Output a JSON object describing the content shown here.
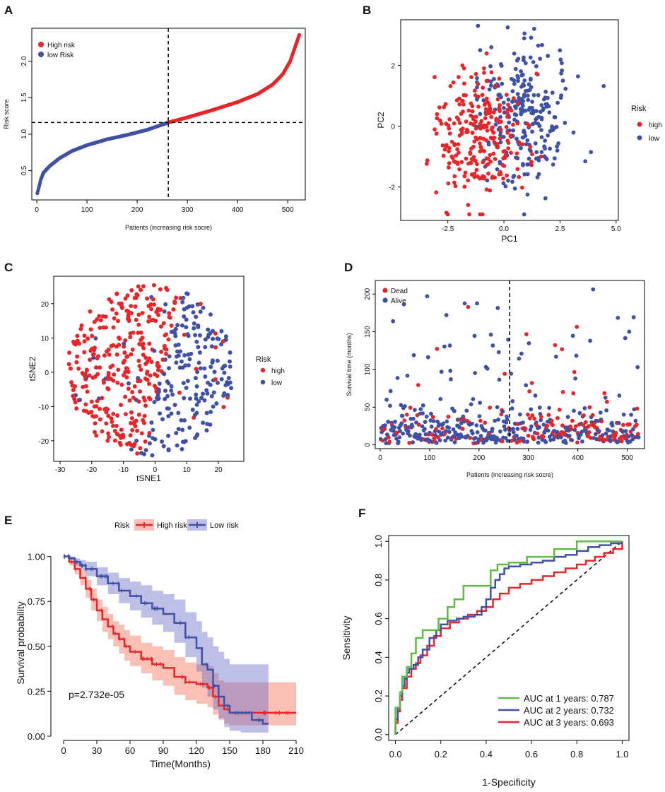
{
  "chart_data": [
    {
      "panel": "A",
      "type": "scatter",
      "title": "",
      "xlabel": "Patients (increasing risk socre)",
      "ylabel": "Risk score",
      "xlim": [
        -10,
        535
      ],
      "ylim": [
        0.1,
        2.45
      ],
      "xticks": [
        "0",
        "100",
        "200",
        "300",
        "400",
        "500"
      ],
      "yticks": [
        "0.5",
        "1.0",
        "1.5",
        "2.0"
      ],
      "cutoff_x": 262,
      "cutoff_y": 1.16,
      "legend": [
        "High risk",
        "low Risk"
      ],
      "colors": {
        "high": "#e8262a",
        "low": "#3f51a5"
      },
      "n_patients": 523,
      "curve_knots": [
        [
          1,
          0.19
        ],
        [
          4,
          0.27
        ],
        [
          8,
          0.38
        ],
        [
          13,
          0.47
        ],
        [
          25,
          0.56
        ],
        [
          45,
          0.67
        ],
        [
          70,
          0.77
        ],
        [
          100,
          0.85
        ],
        [
          140,
          0.93
        ],
        [
          180,
          0.99
        ],
        [
          220,
          1.06
        ],
        [
          262,
          1.16
        ],
        [
          300,
          1.23
        ],
        [
          350,
          1.33
        ],
        [
          400,
          1.44
        ],
        [
          440,
          1.55
        ],
        [
          470,
          1.68
        ],
        [
          490,
          1.82
        ],
        [
          505,
          2.0
        ],
        [
          515,
          2.2
        ],
        [
          523,
          2.36
        ]
      ]
    },
    {
      "panel": "B",
      "type": "scatter",
      "xlabel": "PC1",
      "ylabel": "PC2",
      "xlim": [
        -4.6,
        5.1
      ],
      "ylim": [
        -3.1,
        3.5
      ],
      "xticks": [
        "-2.5",
        "0.0",
        "2.5",
        "5.0"
      ],
      "yticks": [
        "-2",
        "0",
        "2"
      ],
      "legend_title": "Risk",
      "legend": [
        "high",
        "low"
      ],
      "groups": {
        "high": {
          "cx": -1.0,
          "cy": -0.3,
          "sx": 1.0,
          "sy": 1.05
        },
        "low": {
          "cx": 0.8,
          "cy": 0.3,
          "sx": 1.1,
          "sy": 1.1
        }
      },
      "n_per_group": 262
    },
    {
      "panel": "C",
      "type": "scatter",
      "xlabel": "tSNE1",
      "ylabel": "tSNE2",
      "xlim": [
        -32,
        28
      ],
      "ylim": [
        -26,
        28
      ],
      "xticks": [
        "-30",
        "-20",
        "-10",
        "0",
        "10",
        "20"
      ],
      "yticks": [
        "-20",
        "-10",
        "0",
        "10",
        "20"
      ],
      "legend_title": "Risk",
      "legend": [
        "high",
        "low"
      ],
      "disk": {
        "cx": -1.5,
        "cy": 0.5,
        "r": 25
      },
      "n_per_group": 262
    },
    {
      "panel": "D",
      "type": "scatter",
      "xlabel": "Patients (increasing risk socre)",
      "ylabel": "Survival time (months)",
      "xlim": [
        -10,
        535
      ],
      "ylim": [
        -5,
        218
      ],
      "xticks": [
        "0",
        "100",
        "200",
        "300",
        "400",
        "500"
      ],
      "yticks": [
        "0",
        "50",
        "100",
        "150",
        "200"
      ],
      "cutoff_x": 262,
      "legend": [
        "Dead",
        "Alive"
      ],
      "n_patients": 523
    },
    {
      "panel": "E",
      "type": "line",
      "xlabel": "Time(Months)",
      "ylabel": "Survival probability",
      "xlim": [
        0,
        210
      ],
      "ylim": [
        0,
        1.03
      ],
      "xticks": [
        "0",
        "30",
        "60",
        "90",
        "120",
        "150",
        "180",
        "210"
      ],
      "yticks": [
        "0.00",
        "0.25",
        "0.50",
        "0.75",
        "1.00"
      ],
      "legend_title": "Risk",
      "annotation": "p=2.732e-05",
      "series": [
        {
          "name": "High risk",
          "color": "#e8262a",
          "x": [
            0,
            5,
            10,
            15,
            20,
            25,
            30,
            35,
            40,
            45,
            50,
            55,
            60,
            70,
            80,
            90,
            100,
            110,
            120,
            130,
            135,
            140,
            145,
            150,
            160,
            170,
            180,
            210
          ],
          "y": [
            1.0,
            0.97,
            0.93,
            0.88,
            0.82,
            0.76,
            0.7,
            0.65,
            0.61,
            0.57,
            0.54,
            0.5,
            0.47,
            0.43,
            0.4,
            0.38,
            0.33,
            0.3,
            0.29,
            0.27,
            0.22,
            0.17,
            0.15,
            0.13,
            0.13,
            0.13,
            0.13,
            0.13
          ],
          "ci_low": [
            1.0,
            0.95,
            0.9,
            0.84,
            0.77,
            0.7,
            0.64,
            0.58,
            0.54,
            0.5,
            0.46,
            0.42,
            0.39,
            0.35,
            0.31,
            0.28,
            0.23,
            0.2,
            0.18,
            0.16,
            0.12,
            0.09,
            0.07,
            0.06,
            0.06,
            0.06,
            0.06,
            0.06
          ],
          "ci_high": [
            1.0,
            0.99,
            0.96,
            0.92,
            0.87,
            0.82,
            0.76,
            0.72,
            0.68,
            0.64,
            0.62,
            0.59,
            0.56,
            0.52,
            0.5,
            0.48,
            0.44,
            0.41,
            0.4,
            0.39,
            0.35,
            0.31,
            0.3,
            0.3,
            0.3,
            0.3,
            0.3,
            0.3
          ]
        },
        {
          "name": "Low risk",
          "color": "#3f51a5",
          "x": [
            0,
            5,
            10,
            15,
            20,
            30,
            40,
            50,
            60,
            70,
            80,
            90,
            100,
            110,
            120,
            125,
            130,
            135,
            140,
            145,
            150,
            160,
            170,
            180,
            185
          ],
          "y": [
            1.0,
            0.99,
            0.97,
            0.95,
            0.93,
            0.89,
            0.85,
            0.81,
            0.78,
            0.74,
            0.71,
            0.68,
            0.63,
            0.55,
            0.49,
            0.4,
            0.37,
            0.28,
            0.22,
            0.17,
            0.13,
            0.13,
            0.09,
            0.07,
            0.07
          ],
          "ci_low": [
            1.0,
            0.98,
            0.95,
            0.92,
            0.89,
            0.84,
            0.79,
            0.74,
            0.7,
            0.66,
            0.62,
            0.58,
            0.52,
            0.44,
            0.36,
            0.27,
            0.22,
            0.15,
            0.1,
            0.05,
            0.03,
            0.02,
            0.02,
            0.02,
            0.02
          ],
          "ci_high": [
            1.0,
            1.0,
            0.99,
            0.98,
            0.97,
            0.94,
            0.91,
            0.88,
            0.86,
            0.84,
            0.81,
            0.79,
            0.76,
            0.69,
            0.64,
            0.58,
            0.55,
            0.5,
            0.47,
            0.43,
            0.4,
            0.4,
            0.4,
            0.4,
            0.4
          ]
        }
      ]
    },
    {
      "panel": "F",
      "type": "line",
      "xlabel": "1-Specificity",
      "ylabel": "Sensitivity",
      "xlim": [
        -0.03,
        1.03
      ],
      "ylim": [
        -0.03,
        1.03
      ],
      "xticks": [
        "0.0",
        "0.2",
        "0.4",
        "0.6",
        "0.8",
        "1.0"
      ],
      "yticks": [
        "0.0",
        "0.2",
        "0.4",
        "0.6",
        "0.8",
        "1.0"
      ],
      "series": [
        {
          "name": "AUC at 1 years: 0.787",
          "color": "#5fbb46",
          "x": [
            0,
            0.0,
            0.02,
            0.02,
            0.03,
            0.03,
            0.05,
            0.05,
            0.07,
            0.07,
            0.09,
            0.09,
            0.12,
            0.12,
            0.19,
            0.19,
            0.23,
            0.23,
            0.26,
            0.26,
            0.3,
            0.3,
            0.42,
            0.42,
            0.45,
            0.45,
            0.5,
            0.5,
            0.58,
            0.58,
            0.7,
            0.7,
            0.8,
            0.8,
            0.84,
            0.84,
            1.0
          ],
          "y": [
            0,
            0.14,
            0.14,
            0.22,
            0.22,
            0.3,
            0.3,
            0.35,
            0.35,
            0.42,
            0.42,
            0.5,
            0.5,
            0.54,
            0.54,
            0.6,
            0.6,
            0.66,
            0.66,
            0.7,
            0.7,
            0.77,
            0.77,
            0.85,
            0.85,
            0.88,
            0.88,
            0.89,
            0.89,
            0.92,
            0.92,
            0.96,
            0.96,
            1.0,
            1.0,
            1.0,
            1.0
          ]
        },
        {
          "name": "AUC at 2 years: 0.732",
          "color": "#3f51a5",
          "x": [
            0,
            0.0,
            0.01,
            0.02,
            0.03,
            0.04,
            0.05,
            0.06,
            0.08,
            0.1,
            0.12,
            0.15,
            0.18,
            0.2,
            0.23,
            0.27,
            0.3,
            0.35,
            0.38,
            0.4,
            0.42,
            0.44,
            0.46,
            0.48,
            0.5,
            0.55,
            0.6,
            0.65,
            0.7,
            0.75,
            0.8,
            0.85,
            0.9,
            0.95,
            1.0
          ],
          "y": [
            0,
            0.08,
            0.14,
            0.2,
            0.25,
            0.29,
            0.32,
            0.34,
            0.36,
            0.4,
            0.44,
            0.5,
            0.54,
            0.57,
            0.59,
            0.6,
            0.61,
            0.62,
            0.66,
            0.7,
            0.76,
            0.8,
            0.83,
            0.86,
            0.87,
            0.88,
            0.89,
            0.9,
            0.92,
            0.93,
            0.95,
            0.97,
            0.98,
            0.99,
            1.0
          ]
        },
        {
          "name": "AUC at 3 years: 0.693",
          "color": "#e8262a",
          "x": [
            0,
            0.0,
            0.01,
            0.02,
            0.03,
            0.05,
            0.07,
            0.09,
            0.11,
            0.14,
            0.17,
            0.2,
            0.24,
            0.28,
            0.32,
            0.36,
            0.4,
            0.43,
            0.46,
            0.5,
            0.55,
            0.6,
            0.65,
            0.7,
            0.75,
            0.8,
            0.84,
            0.88,
            0.92,
            0.96,
            1.0
          ],
          "y": [
            0,
            0.06,
            0.12,
            0.18,
            0.24,
            0.3,
            0.34,
            0.37,
            0.41,
            0.46,
            0.51,
            0.55,
            0.58,
            0.6,
            0.62,
            0.64,
            0.66,
            0.7,
            0.73,
            0.76,
            0.78,
            0.8,
            0.82,
            0.84,
            0.86,
            0.88,
            0.9,
            0.92,
            0.94,
            0.96,
            1.0
          ]
        }
      ]
    }
  ],
  "panels": {
    "a": {
      "letter": "A"
    },
    "b": {
      "letter": "B"
    },
    "c": {
      "letter": "C"
    },
    "d": {
      "letter": "D"
    },
    "e": {
      "letter": "E"
    },
    "f": {
      "letter": "F"
    }
  }
}
